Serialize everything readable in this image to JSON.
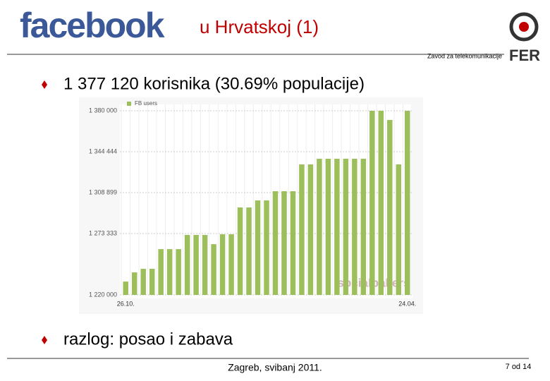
{
  "header": {
    "logo": "facebook",
    "title": "u Hrvatskoj (1)",
    "institute": "Zavod za telekomunikacije",
    "institute_logo": "FER"
  },
  "bullets": [
    "1 377 120 korisnika (30.69% populacije)",
    "razlog: posao i zabava"
  ],
  "chart_data": {
    "type": "bar",
    "categories": [
      "26.10.",
      null,
      null,
      null,
      null,
      null,
      null,
      null,
      null,
      null,
      null,
      null,
      null,
      null,
      null,
      null,
      null,
      null,
      null,
      null,
      null,
      null,
      null,
      null,
      null,
      null,
      null,
      null,
      null,
      null,
      null,
      null,
      "24.04."
    ],
    "series": [
      {
        "name": "FB users",
        "color": "#9cbf5b",
        "values": [
          1231600,
          1239600,
          1242700,
          1242700,
          1259800,
          1259800,
          1259800,
          1272100,
          1272100,
          1272100,
          1264100,
          1272700,
          1272700,
          1296000,
          1296000,
          1302100,
          1302100,
          1310100,
          1310100,
          1310100,
          1333400,
          1333400,
          1338300,
          1338300,
          1338300,
          1338300,
          1338300,
          1338300,
          1380000,
          1380000,
          1372000,
          1333400,
          1380000
        ]
      }
    ],
    "ylim": [
      1220000,
      1380000
    ],
    "yticks": [
      {
        "value": 1220000,
        "label": "1 220 000"
      },
      {
        "value": 1273333,
        "label": "1 273 333"
      },
      {
        "value": 1308899,
        "label": "1 308 899"
      },
      {
        "value": 1344444,
        "label": "1 344 444"
      },
      {
        "value": 1380000,
        "label": "1 380 000"
      }
    ],
    "grid": true,
    "watermark": "socialbakers"
  },
  "footer": {
    "place": "Zagreb, svibanj 2011.",
    "page": "7 od 14"
  }
}
